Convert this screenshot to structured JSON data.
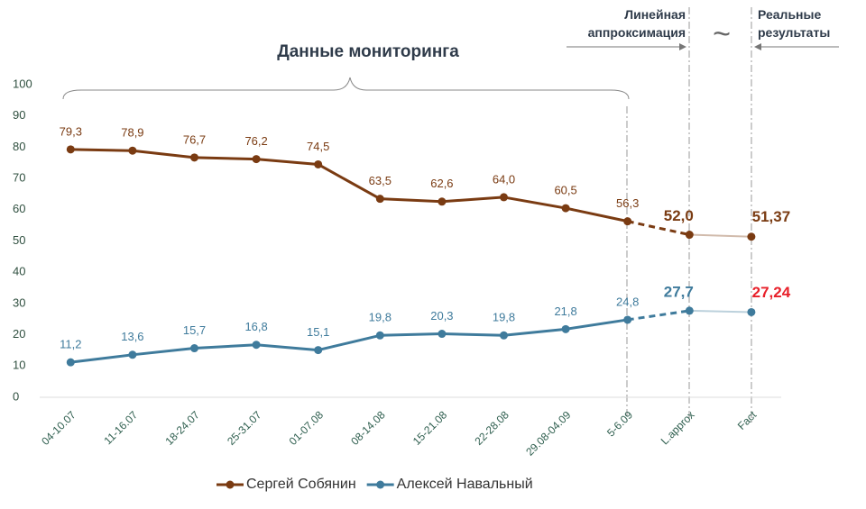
{
  "chart_data": {
    "type": "line",
    "title": "Данные мониторинга",
    "annotations": {
      "approx": "Линейная аппроксимация",
      "tilde": "~",
      "real": "Реальные результаты"
    },
    "categories": [
      "04-10.07",
      "11-16.07",
      "18-24.07",
      "25-31.07",
      "01-07.08",
      "08-14.08",
      "15-21.08",
      "22-28.08",
      "29.08-04.09",
      "5-6.09",
      "L.approx",
      "Fact"
    ],
    "series": [
      {
        "name": "Сергей Собянин",
        "color": "#7a3b12",
        "highlight_color": "#7a3b12",
        "values": [
          79.3,
          78.9,
          76.7,
          76.2,
          74.5,
          63.5,
          62.6,
          64.0,
          60.5,
          56.3,
          52.0,
          51.37
        ],
        "value_labels": [
          "79,3",
          "78,9",
          "76,7",
          "76,2",
          "74,5",
          "63,5",
          "62,6",
          "64,0",
          "60,5",
          "56,3",
          "52,0",
          "51,37"
        ]
      },
      {
        "name": "Алексей Навальный",
        "color": "#3f7b9c",
        "highlight_color": "#e8202a",
        "values": [
          11.2,
          13.6,
          15.7,
          16.8,
          15.1,
          19.8,
          20.3,
          19.8,
          21.8,
          24.8,
          27.7,
          27.24
        ],
        "value_labels": [
          "11,2",
          "13,6",
          "15,7",
          "16,8",
          "15,1",
          "19,8",
          "20,3",
          "19,8",
          "21,8",
          "24,8",
          "27,7",
          "27,24"
        ]
      }
    ],
    "ylim": [
      0,
      100
    ],
    "yticks": [
      0,
      10,
      20,
      30,
      40,
      50,
      60,
      70,
      80,
      90,
      100
    ],
    "grid": false,
    "legend": "bottom"
  }
}
